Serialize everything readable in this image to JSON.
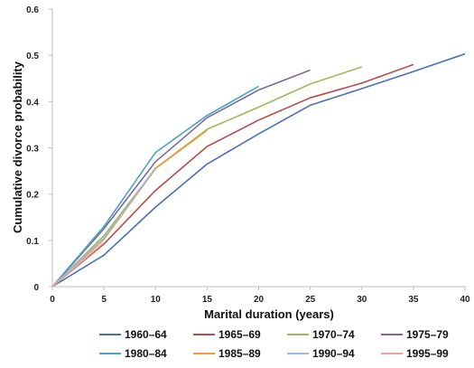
{
  "chart_data": {
    "type": "line",
    "title": "",
    "xlabel": "Marital duration (years)",
    "ylabel": "Cumulative divorce probability",
    "xlim": [
      0,
      40
    ],
    "ylim": [
      0,
      0.6
    ],
    "x_ticks": [
      "0",
      "5",
      "10",
      "15",
      "20",
      "25",
      "30",
      "35",
      "40"
    ],
    "y_ticks": [
      "0",
      "0.1",
      "0.2",
      "0.3",
      "0.4",
      "0.5",
      "0.6"
    ],
    "grid": false,
    "legend_position": "bottom",
    "series": [
      {
        "name": "1960–64",
        "color": "#4a6fb5",
        "x": [
          0,
          5,
          10,
          15,
          20,
          25,
          30,
          35,
          40
        ],
        "y": [
          0,
          0.068,
          0.172,
          0.265,
          0.33,
          0.392,
          0.428,
          0.465,
          0.503
        ]
      },
      {
        "name": "1965–69",
        "color": "#b84b4b",
        "x": [
          0,
          5,
          10,
          15,
          20,
          25,
          30,
          35
        ],
        "y": [
          0,
          0.092,
          0.208,
          0.303,
          0.36,
          0.408,
          0.44,
          0.48
        ]
      },
      {
        "name": "1970–74",
        "color": "#9bbb59",
        "x": [
          0,
          5,
          10,
          15,
          20,
          25,
          30
        ],
        "y": [
          0,
          0.11,
          0.256,
          0.34,
          0.388,
          0.438,
          0.475
        ]
      },
      {
        "name": "1975–79",
        "color": "#7a6a9a",
        "x": [
          0,
          5,
          10,
          15,
          20,
          25
        ],
        "y": [
          0,
          0.125,
          0.27,
          0.365,
          0.425,
          0.468
        ]
      },
      {
        "name": "1980–84",
        "color": "#4aa3c0",
        "x": [
          0,
          5,
          10,
          15,
          20
        ],
        "y": [
          0,
          0.13,
          0.29,
          0.37,
          0.433
        ]
      },
      {
        "name": "1985–89",
        "color": "#f29a3d",
        "x": [
          0,
          5,
          10,
          15
        ],
        "y": [
          0,
          0.102,
          0.255,
          0.338
        ]
      },
      {
        "name": "1990–94",
        "color": "#9fb8e0",
        "x": [
          0,
          5,
          10
        ],
        "y": [
          0,
          0.105,
          0.257
        ]
      },
      {
        "name": "1995–99",
        "color": "#e8a3a3",
        "x": [
          0,
          5
        ],
        "y": [
          0,
          0.095
        ]
      }
    ]
  }
}
